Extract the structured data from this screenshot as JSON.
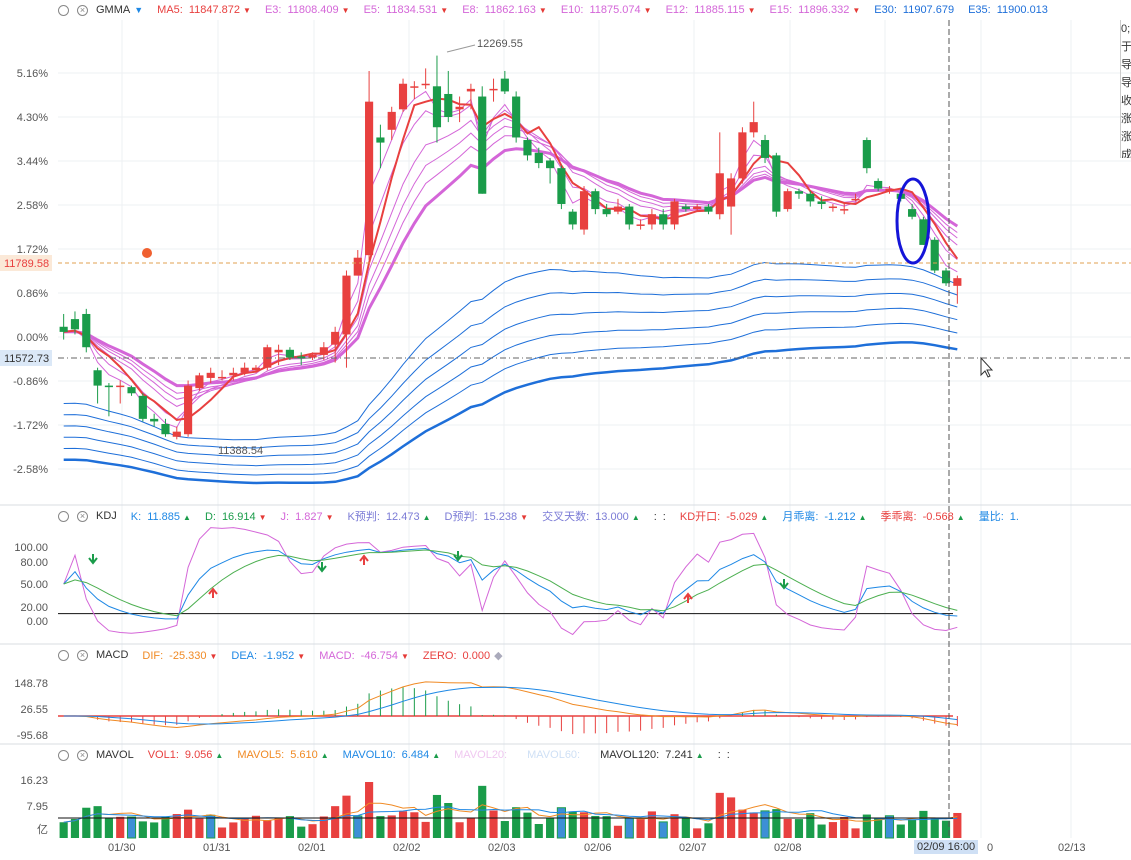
{
  "colors": {
    "up": "#e8403f",
    "down": "#1a9c4a",
    "blue_long": "#1e6fd9",
    "pink_short": "#d466d8",
    "ma5": "#e8403f"
  },
  "main": {
    "name": "GMMA",
    "items": [
      {
        "label": "MA5:",
        "value": "11847.872",
        "color": "#e8403f"
      },
      {
        "label": "E3:",
        "value": "11808.409",
        "color": "#d466d8"
      },
      {
        "label": "E5:",
        "value": "11834.531",
        "color": "#d466d8"
      },
      {
        "label": "E8:",
        "value": "11862.163",
        "color": "#d466d8"
      },
      {
        "label": "E10:",
        "value": "11875.074",
        "color": "#d466d8"
      },
      {
        "label": "E12:",
        "value": "11885.115",
        "color": "#d466d8"
      },
      {
        "label": "E15:",
        "value": "11896.332",
        "color": "#d466d8"
      },
      {
        "label": "E30:",
        "value": "11907.679",
        "color": "#1e6fd9"
      },
      {
        "label": "E35:",
        "value": "11900.013",
        "color": "#1e6fd9"
      }
    ],
    "y_ticks": [
      "5.16%",
      "4.30%",
      "3.44%",
      "2.58%",
      "1.72%",
      "0.86%",
      "0.00%",
      "-0.86%",
      "-1.72%",
      "-2.58%"
    ],
    "price_tag": "11789.58",
    "cross_tag": "11572.73",
    "high_label": "12269.55",
    "low_label": "11388.54",
    "side_text": [
      "0;",
      "于",
      "导",
      "导",
      "收",
      "涨",
      "涨",
      "成"
    ]
  },
  "kdj": {
    "name": "KDJ",
    "items": [
      {
        "label": "K:",
        "value": "11.885",
        "color": "#1e88e5",
        "dir": "up"
      },
      {
        "label": "D:",
        "value": "16.914",
        "color": "#1a9c4a",
        "dir": "dn"
      },
      {
        "label": "J:",
        "value": "1.827",
        "color": "#d466d8",
        "dir": "dn"
      },
      {
        "label": "K预判:",
        "value": "12.473",
        "color": "#7b7bd6",
        "dir": "up"
      },
      {
        "label": "D预判:",
        "value": "15.238",
        "color": "#7b7bd6",
        "dir": "dn"
      },
      {
        "label": "交叉天数:",
        "value": "13.000",
        "color": "#7b7bd6",
        "dir": "up"
      },
      {
        "label": ":",
        "value": ":",
        "color": "#333",
        "dir": ""
      },
      {
        "label": "KD开口:",
        "value": "-5.029",
        "color": "#e8403f",
        "dir": "up"
      },
      {
        "label": "月乖离:",
        "value": "-1.212",
        "color": "#1e88e5",
        "dir": "up"
      },
      {
        "label": "季乖离:",
        "value": "-0.568",
        "color": "#e8403f",
        "dir": "up"
      },
      {
        "label": "量比:",
        "value": "1.",
        "color": "#1e88e5",
        "dir": ""
      }
    ],
    "y_ticks": [
      "100.00",
      "80.00",
      "50.00",
      "20.00",
      "0.00"
    ]
  },
  "macd": {
    "name": "MACD",
    "items": [
      {
        "label": "DIF:",
        "value": "-25.330",
        "color": "#f08a24",
        "dir": "dn"
      },
      {
        "label": "DEA:",
        "value": "-1.952",
        "color": "#1e88e5",
        "dir": "dn"
      },
      {
        "label": "MACD:",
        "value": "-46.754",
        "color": "#d466d8",
        "dir": "dn"
      },
      {
        "label": "ZERO:",
        "value": "0.000",
        "color": "#e8403f",
        "dir": "dot"
      }
    ],
    "y_ticks": [
      "148.78",
      "26.55",
      "-95.68"
    ]
  },
  "mavol": {
    "name": "MAVOL",
    "items": [
      {
        "label": "VOL1:",
        "value": "9.056",
        "color": "#e8403f",
        "dir": "up"
      },
      {
        "label": "MAVOL5:",
        "value": "5.610",
        "color": "#f08a24",
        "dir": "up"
      },
      {
        "label": "MAVOL10:",
        "value": "6.484",
        "color": "#1e88e5",
        "dir": "up"
      },
      {
        "label": "MAVOL20:",
        "value": "",
        "color": "#f0c8f0",
        "dir": ""
      },
      {
        "label": "MAVOL60:",
        "value": "",
        "color": "#cfe0f5",
        "dir": ""
      },
      {
        "label": "MAVOL120:",
        "value": "7.241",
        "color": "#333",
        "dir": "up"
      },
      {
        "label": ":",
        "value": ":",
        "color": "#333",
        "dir": ""
      }
    ],
    "y_ticks": [
      "16.23",
      "7.95",
      "亿"
    ]
  },
  "x_labels": [
    "01/30",
    "01/31",
    "02/01",
    "02/02",
    "02/03",
    "02/06",
    "02/07",
    "02/08",
    "02/09",
    "02/13"
  ],
  "x_selected": "02/09 16:00",
  "x_after_selected": "0",
  "chart_data": {
    "type": "candlestick",
    "unit": "percent change",
    "candles": [
      [
        0.2,
        0.1,
        0.45,
        -0.05
      ],
      [
        0.35,
        0.15,
        0.5,
        0.05
      ],
      [
        0.45,
        -0.2,
        0.55,
        -0.3
      ],
      [
        -0.65,
        -0.95,
        -0.6,
        -1.3
      ],
      [
        -0.95,
        -0.98,
        -0.9,
        -1.55
      ],
      [
        -0.95,
        -0.95,
        -0.85,
        -1.3
      ],
      [
        -0.98,
        -1.1,
        -0.95,
        -1.15
      ],
      [
        -1.15,
        -1.6,
        -1.1,
        -1.65
      ],
      [
        -1.6,
        -1.65,
        -1.5,
        -1.75
      ],
      [
        -1.7,
        -1.9,
        -1.6,
        -1.95
      ],
      [
        -1.95,
        -1.85,
        -1.75,
        -2.0
      ],
      [
        -1.9,
        -0.95,
        -0.85,
        -1.95
      ],
      [
        -1.0,
        -0.75,
        -0.7,
        -1.05
      ],
      [
        -0.8,
        -0.7,
        -0.6,
        -0.9
      ],
      [
        -0.8,
        -0.78,
        -0.65,
        -0.85
      ],
      [
        -0.75,
        -0.7,
        -0.6,
        -0.85
      ],
      [
        -0.7,
        -0.6,
        -0.5,
        -0.75
      ],
      [
        -0.65,
        -0.6,
        -0.55,
        -0.7
      ],
      [
        -0.6,
        -0.2,
        -0.15,
        -0.65
      ],
      [
        -0.3,
        -0.25,
        -0.15,
        -0.55
      ],
      [
        -0.25,
        -0.4,
        -0.2,
        -0.45
      ],
      [
        -0.38,
        -0.42,
        -0.3,
        -0.55
      ],
      [
        -0.4,
        -0.35,
        -0.3,
        -0.45
      ],
      [
        -0.35,
        -0.2,
        -0.1,
        -0.45
      ],
      [
        -0.15,
        0.1,
        0.2,
        -0.5
      ],
      [
        0.05,
        1.2,
        1.3,
        -0.6
      ],
      [
        1.2,
        1.55,
        1.7,
        1.2
      ],
      [
        1.6,
        4.6,
        5.2,
        1.5
      ],
      [
        3.9,
        3.8,
        4.15,
        3.3
      ],
      [
        4.05,
        4.4,
        4.5,
        3.85
      ],
      [
        4.45,
        4.95,
        5.05,
        4.4
      ],
      [
        4.9,
        4.9,
        5.0,
        4.65
      ],
      [
        4.95,
        4.95,
        5.25,
        4.85
      ],
      [
        4.9,
        4.1,
        5.5,
        3.8
      ],
      [
        4.75,
        4.3,
        5.2,
        4.2
      ],
      [
        4.45,
        4.5,
        4.7,
        4.2
      ],
      [
        4.8,
        4.85,
        4.95,
        4.45
      ],
      [
        4.7,
        2.8,
        4.9,
        2.8
      ],
      [
        4.85,
        4.85,
        5.05,
        4.6
      ],
      [
        5.05,
        4.8,
        5.2,
        4.75
      ],
      [
        4.7,
        3.9,
        4.8,
        3.8
      ],
      [
        3.85,
        3.55,
        3.9,
        3.45
      ],
      [
        3.6,
        3.4,
        3.7,
        3.3
      ],
      [
        3.45,
        3.3,
        3.5,
        3.0
      ],
      [
        3.3,
        2.6,
        3.35,
        2.5
      ],
      [
        2.45,
        2.2,
        2.5,
        2.1
      ],
      [
        2.1,
        2.85,
        2.95,
        2.0
      ],
      [
        2.85,
        2.5,
        2.9,
        2.4
      ],
      [
        2.5,
        2.4,
        2.6,
        2.35
      ],
      [
        2.45,
        2.55,
        2.7,
        2.4
      ],
      [
        2.55,
        2.2,
        2.6,
        2.1
      ],
      [
        2.2,
        2.2,
        2.3,
        2.1
      ],
      [
        2.2,
        2.4,
        2.5,
        2.1
      ],
      [
        2.4,
        2.2,
        2.5,
        2.1
      ],
      [
        2.2,
        2.65,
        2.7,
        2.1
      ],
      [
        2.55,
        2.5,
        2.6,
        2.45
      ],
      [
        2.5,
        2.55,
        2.6,
        2.45
      ],
      [
        2.55,
        2.45,
        2.6,
        2.4
      ],
      [
        2.4,
        3.2,
        4.0,
        2.3
      ],
      [
        2.55,
        3.1,
        3.2,
        2.0
      ],
      [
        3.1,
        4.0,
        4.1,
        3.0
      ],
      [
        4.0,
        4.2,
        4.6,
        3.9
      ],
      [
        3.85,
        3.5,
        3.95,
        3.4
      ],
      [
        3.55,
        2.45,
        3.6,
        2.35
      ],
      [
        2.5,
        2.85,
        2.9,
        2.45
      ],
      [
        2.85,
        2.8,
        2.9,
        2.7
      ],
      [
        2.8,
        2.65,
        2.85,
        2.55
      ],
      [
        2.65,
        2.6,
        2.75,
        2.5
      ],
      [
        2.55,
        2.55,
        2.6,
        2.45
      ],
      [
        2.5,
        2.5,
        2.6,
        2.4
      ],
      [
        2.7,
        2.7,
        2.8,
        2.65
      ],
      [
        3.85,
        3.3,
        3.9,
        3.2
      ],
      [
        3.05,
        2.9,
        3.1,
        2.85
      ],
      [
        2.85,
        2.9,
        2.95,
        2.8
      ],
      [
        2.8,
        2.7,
        2.9,
        2.65
      ],
      [
        2.5,
        2.35,
        2.6,
        2.3
      ],
      [
        2.3,
        1.8,
        2.35,
        1.8
      ],
      [
        1.9,
        1.3,
        1.95,
        1.25
      ],
      [
        1.3,
        1.05,
        1.35,
        1.0
      ],
      [
        1.0,
        1.15,
        1.2,
        0.65
      ]
    ]
  }
}
